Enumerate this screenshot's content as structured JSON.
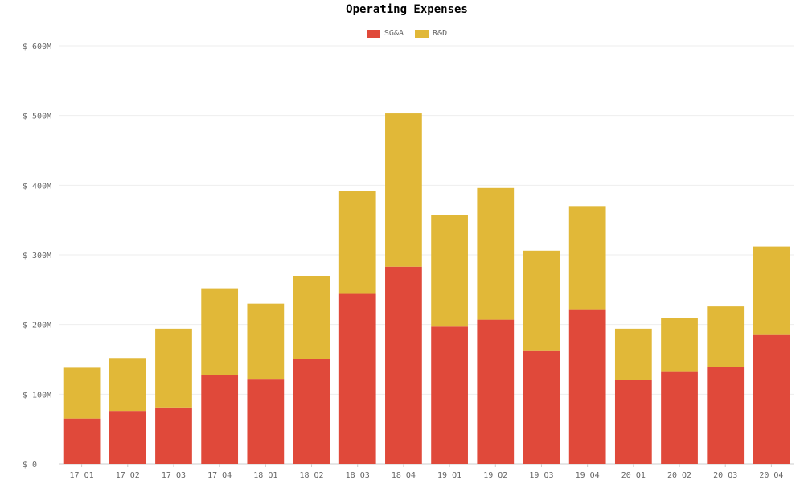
{
  "chart_data": {
    "type": "bar",
    "stacked": true,
    "title": "Operating Expenses",
    "xlabel": "",
    "ylabel": "",
    "categories": [
      "17 Q1",
      "17 Q2",
      "17 Q3",
      "17 Q4",
      "18 Q1",
      "18 Q2",
      "18 Q3",
      "18 Q4",
      "19 Q1",
      "19 Q2",
      "19 Q3",
      "19 Q4",
      "20 Q1",
      "20 Q2",
      "20 Q3",
      "20 Q4"
    ],
    "series": [
      {
        "name": "SG&A",
        "color": "#e0493a",
        "values": [
          65,
          76,
          81,
          128,
          121,
          150,
          244,
          283,
          197,
          207,
          163,
          222,
          120,
          132,
          139,
          185
        ]
      },
      {
        "name": "R&D",
        "color": "#e1b838",
        "values": [
          73,
          76,
          113,
          124,
          109,
          120,
          148,
          220,
          160,
          189,
          143,
          148,
          74,
          78,
          87,
          127
        ]
      }
    ],
    "ylim": [
      0,
      600
    ],
    "yticks": [
      0,
      100,
      200,
      300,
      400,
      500,
      600
    ],
    "ytick_labels": [
      "$ 0",
      "$ 100M",
      "$ 200M",
      "$ 300M",
      "$ 400M",
      "$ 500M",
      "$ 600M"
    ],
    "grid": true,
    "legend_position": "top-center"
  }
}
